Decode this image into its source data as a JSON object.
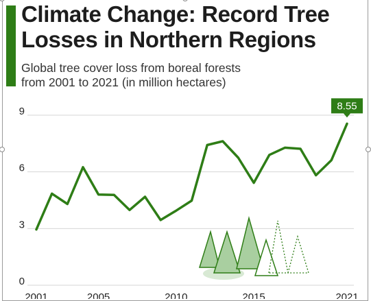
{
  "header": {
    "title_line1": "Climate Change: Record Tree",
    "title_line2": "Losses in Northern Regions",
    "subtitle_line1": "Global tree cover loss from boreal forests",
    "subtitle_line2": "from 2001 to 2021 (in million hectares)"
  },
  "colors": {
    "accent": "#2e7d16",
    "line": "#2e7d16",
    "grid": "#d6d6d6",
    "tree_fill": "#a9cfa0",
    "text": "#1d1d1d"
  },
  "icons": [
    "tree-illustration-icon"
  ],
  "chart_data": {
    "type": "line",
    "x": [
      2001,
      2002,
      2003,
      2004,
      2005,
      2006,
      2007,
      2008,
      2009,
      2010,
      2011,
      2012,
      2013,
      2014,
      2015,
      2016,
      2017,
      2018,
      2019,
      2020,
      2021
    ],
    "series": [
      {
        "values": [
          2.95,
          4.85,
          4.3,
          6.25,
          4.8,
          4.78,
          3.98,
          4.68,
          3.45,
          3.95,
          4.48,
          7.42,
          7.62,
          6.75,
          5.42,
          6.9,
          7.28,
          7.22,
          5.82,
          6.62,
          8.55
        ]
      }
    ],
    "ylim": [
      0,
      9
    ],
    "yticks": [
      "0",
      "3",
      "6",
      "9"
    ],
    "xticks": [
      "2001",
      "2005",
      "2010",
      "2015",
      "2021"
    ],
    "grid": true,
    "annotation": {
      "x": 2021,
      "label": "8.55"
    }
  }
}
